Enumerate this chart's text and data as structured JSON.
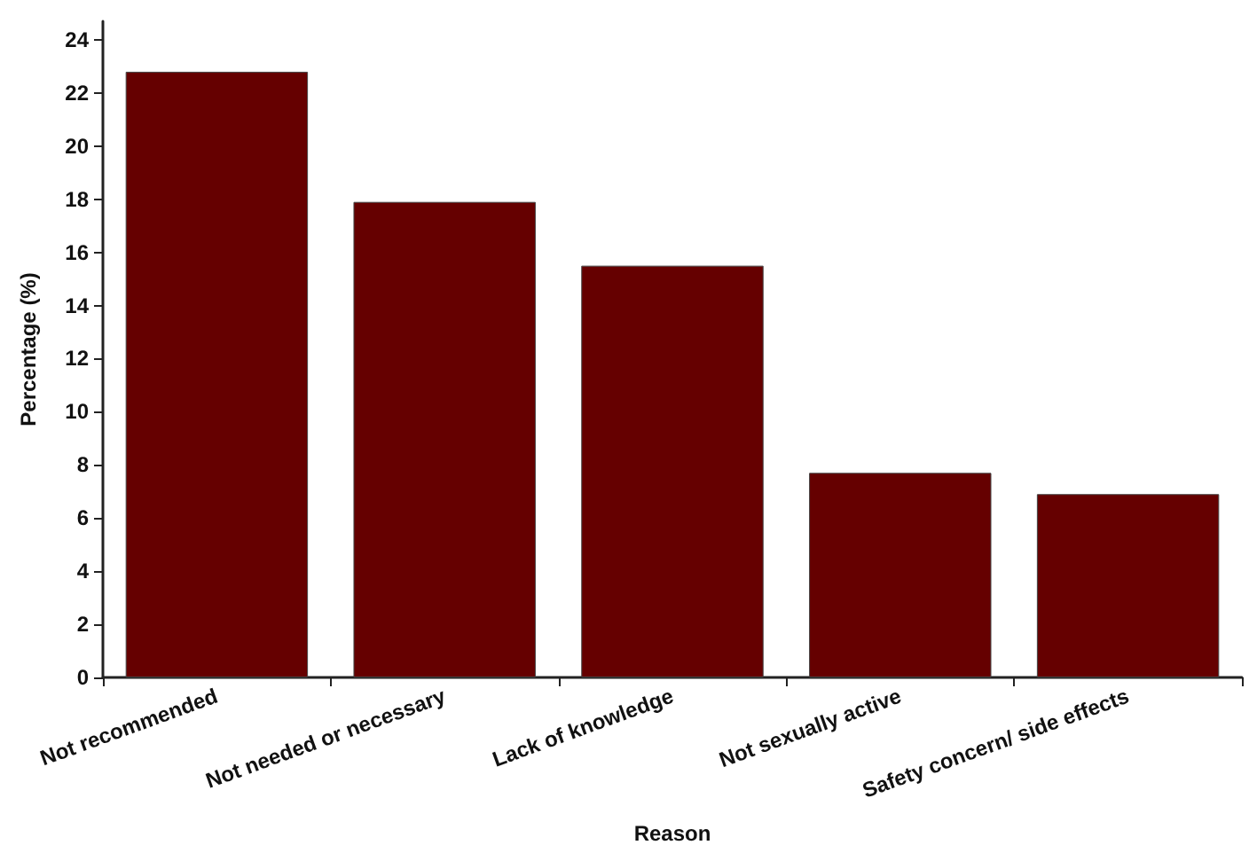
{
  "chart_data": {
    "type": "bar",
    "xlabel": "Reason",
    "ylabel": "Percentage (%)",
    "categories": [
      "Not recommended",
      "Not needed or necessary",
      "Lack of knowledge",
      "Not sexually active",
      "Safety concern/ side effects"
    ],
    "values": [
      22.8,
      17.9,
      15.5,
      7.7,
      6.9
    ],
    "color": "#650000",
    "ylim": [
      0,
      24.7
    ],
    "yticks": [
      0,
      2,
      4,
      6,
      8,
      10,
      12,
      14,
      16,
      18,
      20,
      22,
      24
    ],
    "grid": false
  }
}
